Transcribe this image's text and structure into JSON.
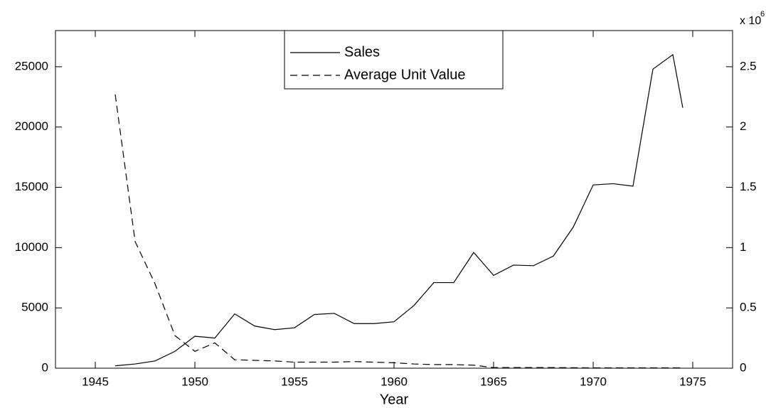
{
  "chart_data": {
    "type": "line",
    "xlabel": "Year",
    "x": [
      1946,
      1947,
      1948,
      1949,
      1950,
      1951,
      1952,
      1953,
      1954,
      1955,
      1956,
      1957,
      1958,
      1959,
      1960,
      1961,
      1962,
      1963,
      1964,
      1965,
      1966,
      1967,
      1968,
      1969,
      1970,
      1971,
      1972,
      1973,
      1974,
      1974.5
    ],
    "series": [
      {
        "name": "Sales",
        "color": "#000000",
        "dash": "solid",
        "values": [
          200,
          350,
          600,
          1400,
          2650,
          2500,
          4500,
          3500,
          3200,
          3350,
          4450,
          4550,
          3700,
          3700,
          3850,
          5200,
          7100,
          7100,
          9600,
          7700,
          8550,
          8500,
          9300,
          11700,
          15200,
          15300,
          15100,
          24800,
          26000,
          21600
        ]
      },
      {
        "name": "Average Unit Value",
        "color": "#000000",
        "dash": "dashed",
        "axis": "y2",
        "values": [
          2270000,
          1050000,
          700000,
          270000,
          140000,
          210000,
          70000,
          65000,
          60000,
          50000,
          50000,
          50000,
          55000,
          50000,
          45000,
          35000,
          30000,
          30000,
          25000,
          5000,
          5000,
          5000,
          5000,
          4000,
          3000,
          3000,
          3000,
          3000,
          3000,
          3000
        ]
      }
    ],
    "xlim": [
      1943,
      1977
    ],
    "xticks": [
      1945,
      1950,
      1955,
      1960,
      1965,
      1970,
      1975
    ],
    "ylim": [
      0,
      28000
    ],
    "yticks": [
      0,
      5000,
      10000,
      15000,
      20000,
      25000
    ],
    "y2lim": [
      0,
      2800000
    ],
    "y2ticks": [
      0,
      {
        "value": 500000,
        "label": "0.5"
      },
      {
        "value": 1000000,
        "label": "1"
      },
      {
        "value": 1500000,
        "label": "1.5"
      },
      {
        "value": 2000000,
        "label": "2"
      },
      {
        "value": 2500000,
        "label": "2.5"
      }
    ],
    "y2_multiplier": "x 10",
    "y2_multiplier_exponent": "6",
    "legend": "top-center",
    "grid": false
  }
}
